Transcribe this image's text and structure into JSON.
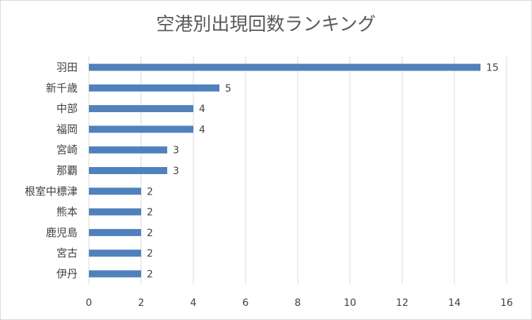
{
  "chart_data": {
    "type": "bar",
    "orientation": "horizontal",
    "title": "空港別出現回数ランキング",
    "categories": [
      "羽田",
      "新千歳",
      "中部",
      "福岡",
      "宮崎",
      "那覇",
      "根室中標津",
      "熊本",
      "鹿児島",
      "宮古",
      "伊丹"
    ],
    "values": [
      15,
      5,
      4,
      4,
      3,
      3,
      2,
      2,
      2,
      2,
      2
    ],
    "xlim": [
      0,
      16
    ],
    "xticks": [
      0,
      2,
      4,
      6,
      8,
      10,
      12,
      14,
      16
    ],
    "grid": true,
    "data_labels": true,
    "bar_color": "#4f81bd",
    "grid_color": "#d9d9d9",
    "label_color": "#404040"
  }
}
